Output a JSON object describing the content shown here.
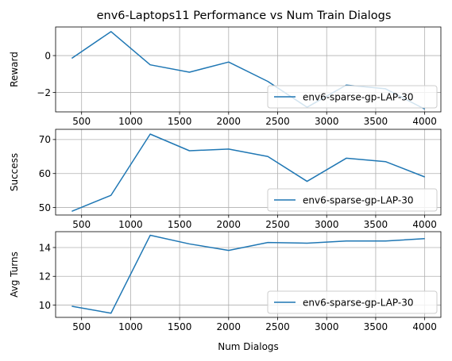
{
  "figure_title": "env6-Laptops11 Performance vs Num Train Dialogs",
  "chart_data": [
    {
      "type": "line",
      "ylabel": "Reward",
      "xlabel": "",
      "xlim": [
        235,
        4165
      ],
      "ylim": [
        -3.05,
        1.55
      ],
      "xticks": [
        500,
        1000,
        1500,
        2000,
        2500,
        3000,
        3500,
        4000
      ],
      "yticks": [
        -2,
        0
      ],
      "grid": true,
      "legend_position": "lower-right",
      "series": [
        {
          "name": "env6-sparse-gp-LAP-30",
          "color": "#1f77b4",
          "x": [
            400,
            800,
            1200,
            1600,
            2000,
            2400,
            2800,
            3200,
            3600,
            4000
          ],
          "y": [
            -0.15,
            1.3,
            -0.5,
            -0.9,
            -0.35,
            -1.4,
            -2.8,
            -1.6,
            -1.8,
            -2.9
          ]
        }
      ]
    },
    {
      "type": "line",
      "ylabel": "Success",
      "xlabel": "",
      "xlim": [
        235,
        4165
      ],
      "ylim": [
        47.8,
        73.0
      ],
      "xticks": [
        500,
        1000,
        1500,
        2000,
        2500,
        3000,
        3500,
        4000
      ],
      "yticks": [
        50,
        60,
        70
      ],
      "grid": true,
      "legend_position": "lower-right",
      "series": [
        {
          "name": "env6-sparse-gp-LAP-30",
          "color": "#1f77b4",
          "x": [
            400,
            800,
            1200,
            1600,
            2000,
            2400,
            2800,
            3200,
            3600,
            4000
          ],
          "y": [
            48.9,
            53.6,
            71.6,
            66.7,
            67.2,
            65.0,
            57.7,
            64.5,
            63.5,
            59.0
          ]
        }
      ]
    },
    {
      "type": "line",
      "ylabel": "Avg Turns",
      "xlabel": "Num Dialogs",
      "xlim": [
        235,
        4165
      ],
      "ylim": [
        9.15,
        15.1
      ],
      "xticks": [
        500,
        1000,
        1500,
        2000,
        2500,
        3000,
        3500,
        4000
      ],
      "yticks": [
        10,
        12,
        14
      ],
      "grid": true,
      "legend_position": "lower-right",
      "series": [
        {
          "name": "env6-sparse-gp-LAP-30",
          "color": "#1f77b4",
          "x": [
            400,
            800,
            1200,
            1600,
            2000,
            2400,
            2800,
            3200,
            3600,
            4000
          ],
          "y": [
            9.92,
            9.44,
            14.85,
            14.25,
            13.8,
            14.35,
            14.3,
            14.45,
            14.45,
            14.62
          ]
        }
      ]
    }
  ]
}
